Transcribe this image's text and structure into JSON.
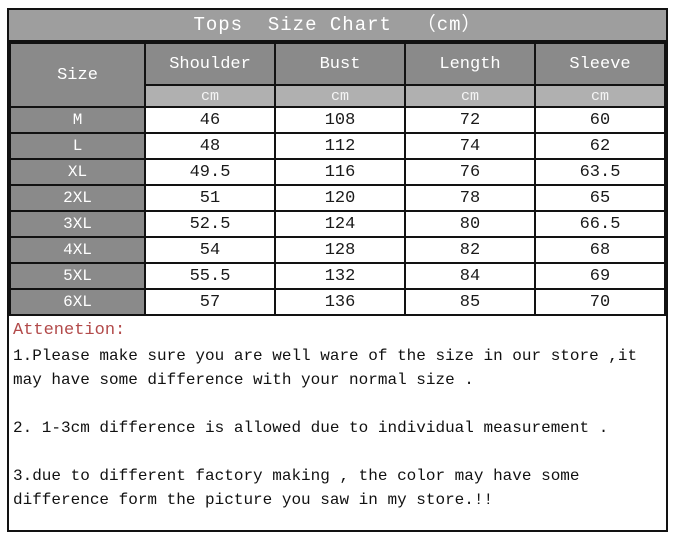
{
  "title": "Tops  Size Chart  （cm）",
  "chart_data": {
    "type": "table",
    "title": "Tops  Size Chart  （cm）",
    "corner_label": "Size",
    "columns": [
      "Shoulder",
      "Bust",
      "Length",
      "Sleeve"
    ],
    "units": [
      "cm",
      "cm",
      "cm",
      "cm"
    ],
    "rows": [
      {
        "size": "M",
        "values": [
          46,
          108,
          72,
          60
        ]
      },
      {
        "size": "L",
        "values": [
          48,
          112,
          74,
          62
        ]
      },
      {
        "size": "XL",
        "values": [
          49.5,
          116,
          76,
          63.5
        ]
      },
      {
        "size": "2XL",
        "values": [
          51,
          120,
          78,
          65
        ]
      },
      {
        "size": "3XL",
        "values": [
          52.5,
          124,
          80,
          66.5
        ]
      },
      {
        "size": "4XL",
        "values": [
          54,
          128,
          82,
          68
        ]
      },
      {
        "size": "5XL",
        "values": [
          55.5,
          132,
          84,
          69
        ]
      },
      {
        "size": "6XL",
        "values": [
          57,
          136,
          85,
          70
        ]
      }
    ]
  },
  "notes": {
    "heading": "Attenetion:",
    "item1": "1.Please make sure you are well ware of the size in our store ,it may have some difference with your normal size .",
    "item2": "2. 1-3cm difference is allowed due to individual measurement .",
    "item3": "3.due to different factory making , the color may have some difference form the picture you saw in my store.!!"
  },
  "colors": {
    "title_bg": "#9e9e9e",
    "header_bg": "#8a8a8a",
    "unit_bg": "#b0b0b0",
    "border": "#121212",
    "attention_red": "#b24a4a"
  }
}
